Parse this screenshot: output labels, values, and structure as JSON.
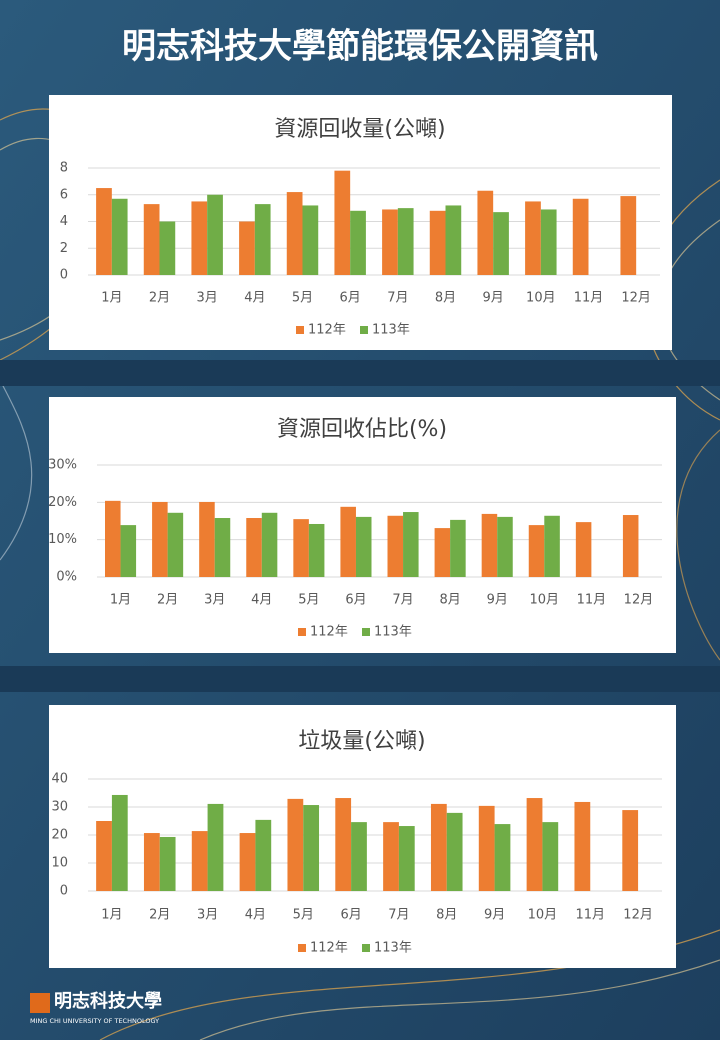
{
  "header": {
    "title": "明志科技大學節能環保公開資訊"
  },
  "chart_data": [
    {
      "type": "bar",
      "title": "資源回收量(公噸)",
      "categories": [
        "1月",
        "2月",
        "3月",
        "4月",
        "5月",
        "6月",
        "7月",
        "8月",
        "9月",
        "10月",
        "11月",
        "12月"
      ],
      "series": [
        {
          "name": "112年",
          "color": "#ed7d31",
          "values": [
            6.5,
            5.3,
            5.5,
            4.0,
            6.2,
            7.8,
            4.9,
            4.8,
            6.3,
            5.5,
            5.7,
            5.9
          ]
        },
        {
          "name": "113年",
          "color": "#70ad47",
          "values": [
            5.7,
            4.0,
            6.0,
            5.3,
            5.2,
            4.8,
            5.0,
            5.2,
            4.7,
            4.9,
            null,
            null
          ]
        }
      ],
      "ylim": [
        0,
        8
      ],
      "yticks": [
        0,
        2,
        4,
        6,
        8
      ],
      "grid": true,
      "legend": "bottom"
    },
    {
      "type": "bar",
      "title": "資源回收佔比(%)",
      "categories": [
        "1月",
        "2月",
        "3月",
        "4月",
        "5月",
        "6月",
        "7月",
        "8月",
        "9月",
        "10月",
        "11月",
        "12月"
      ],
      "series": [
        {
          "name": "112年",
          "color": "#ed7d31",
          "values": [
            20.4,
            20.1,
            20.1,
            15.8,
            15.5,
            18.8,
            16.4,
            13.1,
            16.9,
            13.9,
            14.7,
            16.6
          ]
        },
        {
          "name": "113年",
          "color": "#70ad47",
          "values": [
            13.9,
            17.2,
            15.8,
            17.2,
            14.2,
            16.1,
            17.4,
            15.3,
            16.1,
            16.4,
            null,
            null
          ]
        }
      ],
      "ylim": [
        0,
        30
      ],
      "yticks": [
        {
          "value": 0,
          "label": "0%"
        },
        {
          "value": 10,
          "label": "10%"
        },
        {
          "value": 20,
          "label": "20%"
        },
        {
          "value": 30,
          "label": "30%"
        }
      ],
      "grid": true,
      "legend": "bottom"
    },
    {
      "type": "bar",
      "title": "垃圾量(公噸)",
      "categories": [
        "1月",
        "2月",
        "3月",
        "4月",
        "5月",
        "6月",
        "7月",
        "8月",
        "9月",
        "10月",
        "11月",
        "12月"
      ],
      "series": [
        {
          "name": "112年",
          "color": "#ed7d31",
          "values": [
            25.0,
            20.7,
            21.4,
            20.7,
            32.9,
            33.2,
            24.6,
            31.1,
            30.4,
            33.2,
            31.8,
            28.9
          ]
        },
        {
          "name": "113年",
          "color": "#70ad47",
          "values": [
            34.3,
            19.3,
            31.1,
            25.4,
            30.7,
            24.6,
            23.2,
            27.9,
            23.9,
            24.6,
            null,
            null
          ]
        }
      ],
      "ylim": [
        0,
        40
      ],
      "yticks": [
        0,
        10,
        20,
        30,
        40
      ],
      "grid": true,
      "legend": "bottom"
    }
  ],
  "footer": {
    "logo": "明志科技大學",
    "subtitle": "MING CHI UNIVERSITY OF TECHNOLOGY"
  }
}
